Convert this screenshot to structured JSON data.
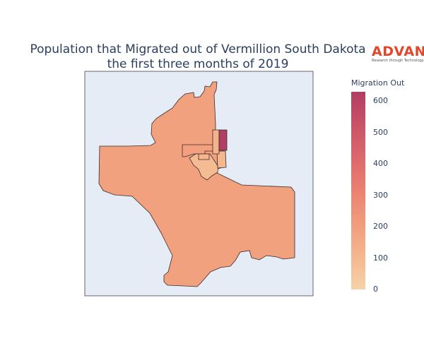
{
  "title": {
    "line1": "Population that Migrated out of Vermillion South Dakota",
    "line2": "the first three months of 2019"
  },
  "logo": {
    "word": "ADVAN",
    "tagline": "Research through Technology"
  },
  "colorbar": {
    "title": "Migration Out",
    "ticks": [
      "0",
      "100",
      "200",
      "300",
      "400",
      "500",
      "600"
    ],
    "min": 0,
    "max": 630,
    "colorscale": [
      "#f6d2a9",
      "#f5b78e",
      "#f19c7c",
      "#ea8171",
      "#dd686c",
      "#ca5268",
      "#b13f64"
    ]
  },
  "map": {
    "background": "#e5ecf6",
    "regions": [
      {
        "id": "large-tract",
        "value": 190
      },
      {
        "id": "north-strip",
        "value": 120
      },
      {
        "id": "northeast-block",
        "value": 630
      },
      {
        "id": "west-inset",
        "value": 195
      },
      {
        "id": "center-south",
        "value": 90
      },
      {
        "id": "center-small",
        "value": 110
      },
      {
        "id": "east-small",
        "value": 105
      }
    ]
  }
}
